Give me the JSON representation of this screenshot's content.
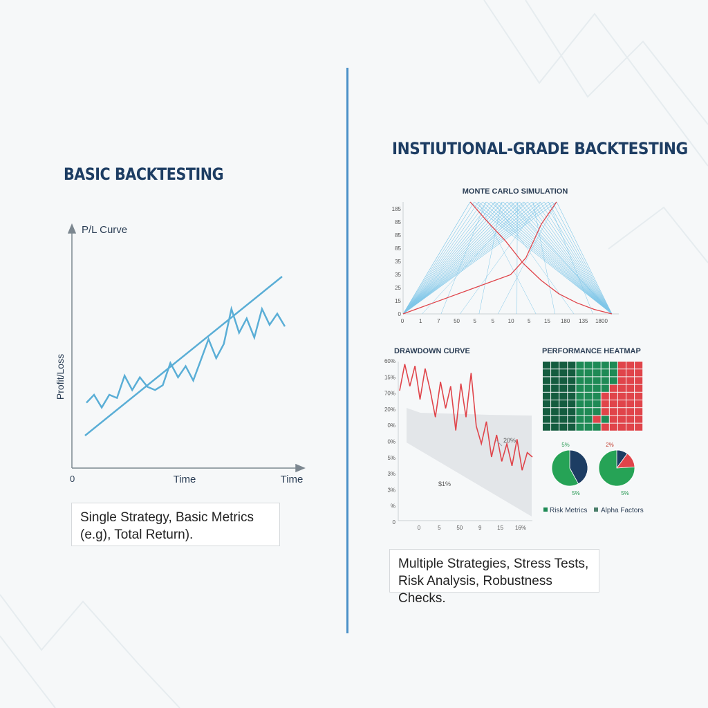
{
  "left": {
    "title": "BASIC BACKTESTING",
    "caption_line1": "Single Strategy, Basic Metrics",
    "caption_line2": "(e.g), Total Return)."
  },
  "right": {
    "title": "INSTIUTIONAL-GRADE BACKTESTING",
    "caption_line1": "Multiple Strategies, Stress Tests,",
    "caption_line2": "Risk Analysis, Robustness Checks."
  },
  "colors": {
    "title": "#1d3d63",
    "pl_line": "#5aaed6",
    "monte_carlo_paths": "#7ec6e8",
    "highlight": "#e0444a",
    "heat_green": "#1e8a55",
    "heat_dark_green": "#145c3f",
    "heat_red": "#e0444a",
    "pie_navy": "#1d3d63",
    "pie_green": "#26a356"
  },
  "chart_data": [
    {
      "type": "line",
      "title": "P/L Curve",
      "ylabel": "Profit/Loss",
      "xlabel": "Time",
      "xlabel_end": "Time",
      "origin_label": "0",
      "series": [
        {
          "values": [
            0.25,
            0.3,
            0.22,
            0.3,
            0.28,
            0.42,
            0.33,
            0.41,
            0.35,
            0.33,
            0.36,
            0.5,
            0.41,
            0.48,
            0.39,
            0.52,
            0.65,
            0.53,
            0.62,
            0.84,
            0.69,
            0.78,
            0.66,
            0.84,
            0.74,
            0.81,
            0.73
          ]
        },
        {
          "values": [
            0.08,
            0.96
          ]
        }
      ]
    },
    {
      "type": "line",
      "title": "MONTE CARLO SIMULATION",
      "y_tick_labels": [
        "185",
        "85",
        "85",
        "85",
        "35",
        "35",
        "25",
        "15",
        "0"
      ],
      "x_tick_labels": [
        "0",
        "1",
        "7",
        "50",
        "5",
        "5",
        "10",
        "5",
        "15",
        "180",
        "135",
        "1800"
      ],
      "series": [
        {
          "values": [
            0.0,
            0.05,
            0.1,
            0.15,
            0.2,
            0.25,
            0.3,
            0.35,
            0.5,
            0.8,
            1.0
          ]
        },
        {
          "values": [
            1.0,
            0.82,
            0.65,
            0.45,
            0.3,
            0.18,
            0.1,
            0.04,
            0.0
          ]
        }
      ]
    },
    {
      "type": "line",
      "title": "DRAWDOWN CURVE",
      "y_tick_labels": [
        "60%",
        "15%",
        "70%",
        "20%",
        "0%",
        "0%",
        "5%",
        "3%",
        "3%",
        "%",
        "0"
      ],
      "x_tick_labels": [
        "0",
        "5",
        "50",
        "9",
        "15",
        "16%"
      ],
      "annotations": [
        "20%",
        "$1%"
      ],
      "series": [
        {
          "values": [
            0.0,
            0.3,
            0.05,
            0.28,
            -0.1,
            0.25,
            0.0,
            -0.3,
            0.1,
            -0.2,
            0.05,
            -0.45,
            0.08,
            -0.3,
            0.2,
            -0.4,
            -0.6,
            -0.35,
            -0.75,
            -0.5,
            -0.8,
            -0.6,
            -0.85,
            -0.55,
            -0.9,
            -0.7,
            -0.75
          ]
        }
      ]
    },
    {
      "type": "heatmap",
      "title": "PERFORMANCE HEATMAP",
      "rows": 9,
      "cols": 12,
      "values": [
        [
          0,
          0,
          0,
          0,
          1,
          1,
          1,
          1,
          1,
          2,
          2,
          2
        ],
        [
          0,
          0,
          0,
          0,
          1,
          1,
          1,
          1,
          1,
          2,
          2,
          2
        ],
        [
          0,
          0,
          0,
          0,
          1,
          1,
          1,
          1,
          1,
          2,
          2,
          2
        ],
        [
          0,
          0,
          0,
          0,
          1,
          1,
          1,
          1,
          2,
          2,
          2,
          2
        ],
        [
          0,
          0,
          0,
          0,
          1,
          1,
          1,
          2,
          2,
          2,
          2,
          2
        ],
        [
          0,
          0,
          0,
          0,
          1,
          1,
          1,
          2,
          2,
          2,
          2,
          2
        ],
        [
          0,
          0,
          0,
          0,
          1,
          1,
          1,
          2,
          2,
          2,
          2,
          2
        ],
        [
          0,
          0,
          0,
          0,
          1,
          1,
          2,
          1,
          2,
          2,
          2,
          2
        ],
        [
          0,
          0,
          0,
          0,
          1,
          1,
          1,
          2,
          2,
          2,
          2,
          2
        ]
      ]
    },
    {
      "type": "pie",
      "top_label": "5%",
      "bottom_label": "5%",
      "legend": "Risk Metrics",
      "slices": [
        0.42,
        0.58
      ]
    },
    {
      "type": "pie",
      "top_label": "2%",
      "bottom_label": "5%",
      "legend": "Alpha Factors",
      "slices": [
        0.1,
        0.14,
        0.76
      ]
    }
  ]
}
